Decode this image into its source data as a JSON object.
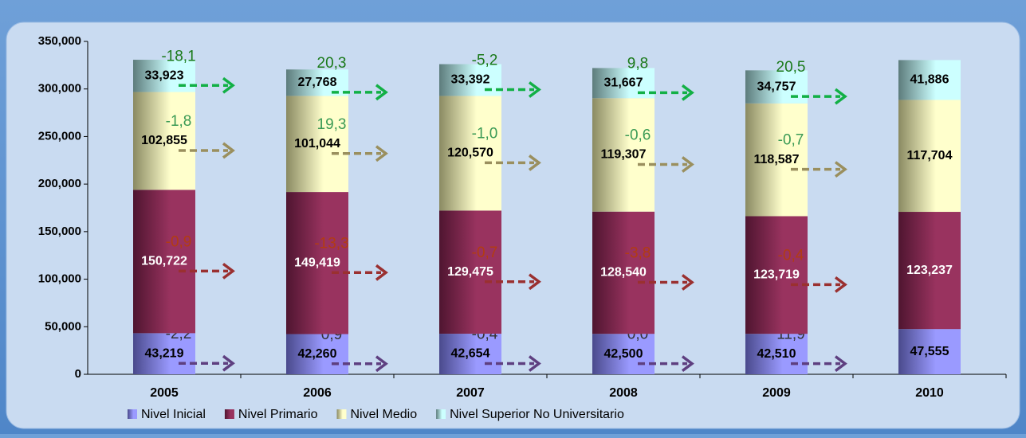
{
  "chart_data": {
    "type": "stacked_bar",
    "categories": [
      "2005",
      "2006",
      "2007",
      "2008",
      "2009",
      "2010"
    ],
    "ylim": [
      0,
      350000
    ],
    "yticks": [
      {
        "value": 0,
        "label": "0"
      },
      {
        "value": 50000,
        "label": "50,000"
      },
      {
        "value": 100000,
        "label": "100,000"
      },
      {
        "value": 150000,
        "label": "150,000"
      },
      {
        "value": 200000,
        "label": "200,000"
      },
      {
        "value": 250000,
        "label": "250,000"
      },
      {
        "value": 300000,
        "label": "300,000"
      },
      {
        "value": 350000,
        "label": "350,000"
      }
    ],
    "series": [
      {
        "name": "Nivel Inicial",
        "color": "#9a9aff",
        "label_color": "#000000",
        "change_color": "#333333",
        "arrow_color": "#5e3f80",
        "values": [
          43219,
          42260,
          42654,
          42500,
          42510,
          47555
        ],
        "value_labels": [
          "43,219",
          "42,260",
          "42,654",
          "42,500",
          "42,510",
          "47,555"
        ],
        "changes": [
          {
            "value": -2.2,
            "label": "-2,2"
          },
          {
            "value": 0.9,
            "label": "0,9"
          },
          {
            "value": -0.4,
            "label": "-0,4"
          },
          {
            "value": 0.0,
            "label": "0,0"
          },
          {
            "value": 11.9,
            "label": "11,9"
          }
        ]
      },
      {
        "name": "Nivel Primario",
        "color": "#99335f",
        "label_color": "#ffffff",
        "change_color": "#b23c12",
        "arrow_color": "#9a3030",
        "values": [
          150722,
          149419,
          129475,
          128540,
          123719,
          123237
        ],
        "value_labels": [
          "150,722",
          "149,419",
          "129,475",
          "128,540",
          "123,719",
          "123,237"
        ],
        "changes": [
          {
            "value": -0.9,
            "label": "-0,9"
          },
          {
            "value": -13.3,
            "label": "-13,3"
          },
          {
            "value": -0.7,
            "label": "-0,7"
          },
          {
            "value": -3.8,
            "label": "-3,8"
          },
          {
            "value": -0.4,
            "label": "-0,4"
          }
        ]
      },
      {
        "name": "Nivel Medio",
        "color": "#ffffcc",
        "label_color": "#000000",
        "change_color": "#3a9a55",
        "arrow_color": "#9a8f5e",
        "values": [
          102855,
          101044,
          120570,
          119307,
          118587,
          117704
        ],
        "value_labels": [
          "102,855",
          "101,044",
          "120,570",
          "119,307",
          "118,587",
          "117,704"
        ],
        "changes": [
          {
            "value": -1.8,
            "label": "-1,8"
          },
          {
            "value": 19.3,
            "label": "19,3"
          },
          {
            "value": -1.0,
            "label": "-1,0"
          },
          {
            "value": -0.6,
            "label": "-0,6"
          },
          {
            "value": -0.7,
            "label": "-0,7"
          }
        ]
      },
      {
        "name": "Nivel Superior No Universitario",
        "color": "#ccffff",
        "label_color": "#000000",
        "change_color": "#1a7a1a",
        "arrow_color": "#12b045",
        "values": [
          33923,
          27768,
          33392,
          31667,
          34757,
          41886
        ],
        "value_labels": [
          "33,923",
          "27,768",
          "33,392",
          "31,667",
          "34,757",
          "41,886"
        ],
        "changes": [
          {
            "value": -18.1,
            "label": "-18,1"
          },
          {
            "value": 20.3,
            "label": "20,3"
          },
          {
            "value": -5.2,
            "label": "-5,2"
          },
          {
            "value": 9.8,
            "label": "9,8"
          },
          {
            "value": 20.5,
            "label": "20,5"
          }
        ]
      }
    ]
  }
}
